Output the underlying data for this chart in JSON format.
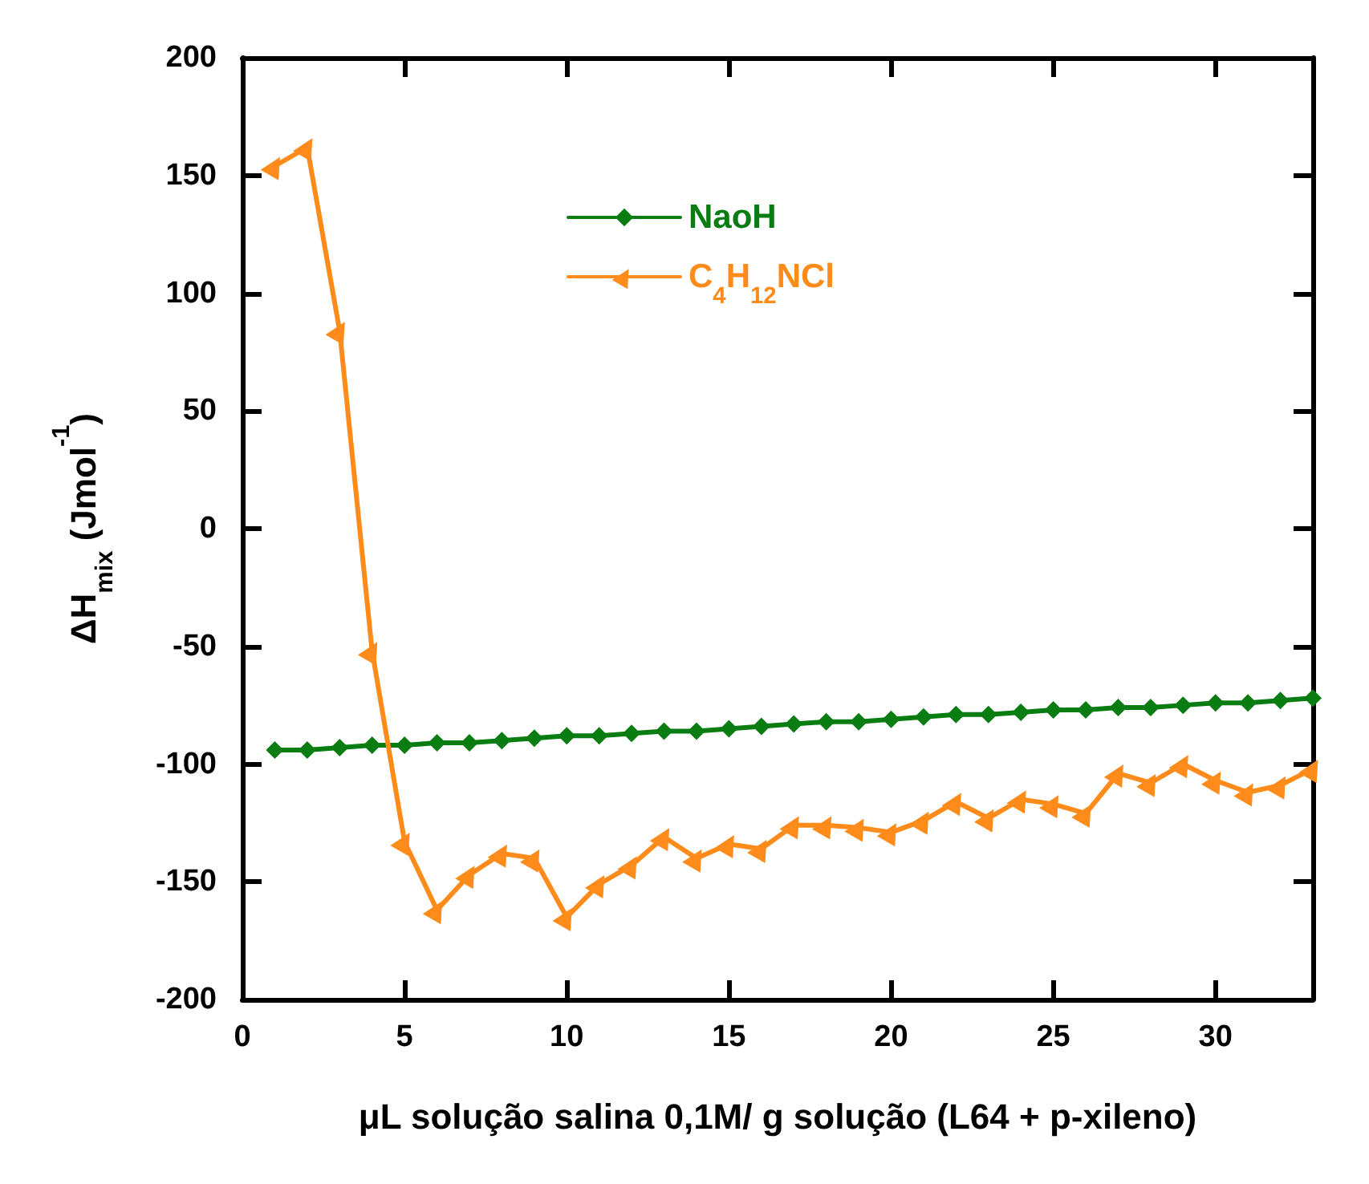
{
  "chart_data": {
    "type": "line",
    "xlabel": "μL solução salina 0,1M/ g solução (L64 + p-xileno)",
    "ylabel": "ΔH$_{mix}$ (Jmol$^{-1}$)",
    "x": [
      1,
      2,
      3,
      4,
      5,
      6,
      7,
      8,
      9,
      10,
      11,
      12,
      13,
      14,
      15,
      16,
      17,
      18,
      19,
      20,
      21,
      22,
      23,
      24,
      25,
      26,
      27,
      28,
      29,
      30,
      31,
      32,
      33
    ],
    "series": [
      {
        "name": "NaoH",
        "color": "#0a7d12",
        "marker": "diamond",
        "values": [
          -94,
          -94,
          -93,
          -92,
          -92,
          -91,
          -91,
          -90,
          -89,
          -88,
          -88,
          -87,
          -86,
          -86,
          -85,
          -84,
          -83,
          -82,
          -82,
          -81,
          -80,
          -79,
          -79,
          -78,
          -77,
          -77,
          -76,
          -76,
          -75,
          -74,
          -74,
          -73,
          -72
        ]
      },
      {
        "name": "C$_{4}$H$_{12}$NCl",
        "color": "#ff8c1a",
        "marker": "triangle",
        "values": [
          154,
          162,
          84,
          -52,
          -133,
          -162,
          -147,
          -138,
          -140,
          -165,
          -151,
          -143,
          -131,
          -140,
          -134,
          -136,
          -126,
          -126,
          -127,
          -129,
          -124,
          -116,
          -123,
          -115,
          -117,
          -121,
          -104,
          -108,
          -100,
          -107,
          -112,
          -109,
          -102
        ]
      }
    ],
    "xlim": [
      0,
      33
    ],
    "xticks": [
      0,
      5,
      10,
      15,
      20,
      25,
      30
    ],
    "ylim": [
      -200,
      200
    ],
    "yticks": [
      -200,
      -150,
      -100,
      -50,
      0,
      50,
      100,
      150,
      200
    ],
    "grid": false,
    "legend": "top",
    "line_style": "solid"
  }
}
